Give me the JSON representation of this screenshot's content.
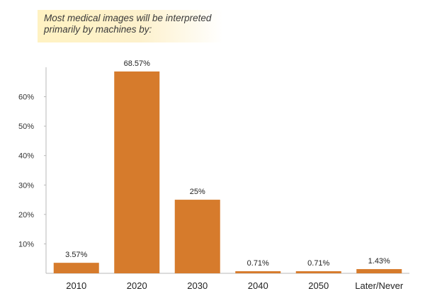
{
  "chart_data": {
    "type": "bar",
    "title": "Most medical images will be interpreted primarily by machines by:",
    "categories": [
      "2010",
      "2020",
      "2030",
      "2040",
      "2050",
      "Later/Never"
    ],
    "values": [
      3.57,
      68.57,
      25,
      0.71,
      0.71,
      1.43
    ],
    "data_labels": [
      "3.57%",
      "68.57%",
      "25%",
      "0.71%",
      "0.71%",
      "1.43%"
    ],
    "y_ticks": [
      {
        "value": 10,
        "label": "10%"
      },
      {
        "value": 20,
        "label": "20%"
      },
      {
        "value": 30,
        "label": "30%"
      },
      {
        "value": 40,
        "label": "40%"
      },
      {
        "value": 50,
        "label": "50%"
      },
      {
        "value": 60,
        "label": "60%"
      }
    ],
    "xlabel": "",
    "ylabel": "",
    "ylim": [
      0,
      70
    ],
    "grid": false,
    "legend": "none",
    "bar_color": "#d67b2c",
    "title_background": "#fdf1c8"
  }
}
